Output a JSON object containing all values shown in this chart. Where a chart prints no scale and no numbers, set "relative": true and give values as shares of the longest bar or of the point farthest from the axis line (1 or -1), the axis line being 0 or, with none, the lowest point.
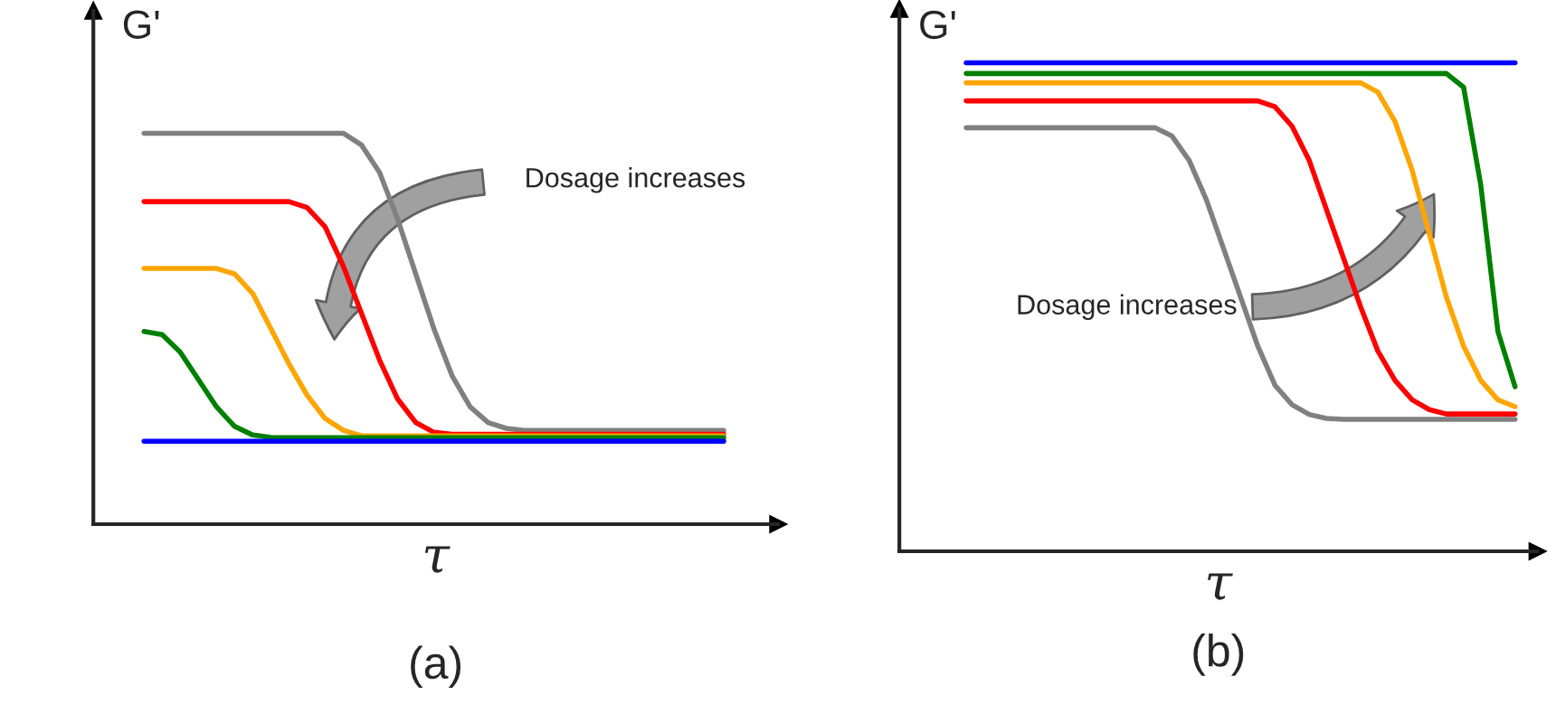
{
  "chart_data": [
    {
      "type": "line",
      "relative": true,
      "title": "(a)",
      "xlabel": "τ",
      "ylabel": "G'",
      "annotations": [
        "Dosage increases"
      ],
      "categories": [
        null,
        null,
        null,
        null,
        null,
        null,
        null,
        null,
        null,
        null,
        null,
        null,
        null,
        null,
        null,
        null,
        null,
        null,
        null,
        null,
        null,
        null,
        null,
        null,
        null,
        null,
        null,
        null,
        null,
        null,
        null,
        null,
        null
      ],
      "series": [
        {
          "color": "#808080",
          "values": [
            1.0,
            1.0,
            1.0,
            1.0,
            1.0,
            1.0,
            1.0,
            1.0,
            1.0,
            1.0,
            1.0,
            1.0,
            0.97,
            0.9,
            0.78,
            0.64,
            0.5,
            0.38,
            0.3,
            0.26,
            0.245,
            0.24,
            0.24,
            0.24,
            0.24,
            0.24,
            0.24,
            0.24,
            0.24,
            0.24,
            0.24,
            0.24,
            0.24
          ]
        },
        {
          "color": "#ff0000",
          "values": [
            0.825,
            0.825,
            0.825,
            0.825,
            0.825,
            0.825,
            0.825,
            0.825,
            0.825,
            0.81,
            0.76,
            0.66,
            0.54,
            0.42,
            0.32,
            0.26,
            0.235,
            0.23,
            0.23,
            0.23,
            0.23,
            0.23,
            0.23,
            0.23,
            0.23,
            0.23,
            0.23,
            0.23,
            0.23,
            0.23,
            0.23,
            0.23,
            0.23
          ]
        },
        {
          "color": "#ffa500",
          "values": [
            0.654,
            0.654,
            0.654,
            0.654,
            0.654,
            0.64,
            0.59,
            0.5,
            0.41,
            0.33,
            0.27,
            0.24,
            0.226,
            0.226,
            0.226,
            0.226,
            0.226,
            0.226,
            0.226,
            0.226,
            0.226,
            0.226,
            0.226,
            0.226,
            0.226,
            0.226,
            0.226,
            0.226,
            0.226,
            0.226,
            0.226,
            0.226,
            0.226
          ]
        },
        {
          "color": "#008000",
          "values": [
            0.493,
            0.485,
            0.44,
            0.37,
            0.3,
            0.25,
            0.228,
            0.222,
            0.221,
            0.221,
            0.221,
            0.221,
            0.221,
            0.221,
            0.221,
            0.221,
            0.221,
            0.221,
            0.221,
            0.221,
            0.221,
            0.221,
            0.221,
            0.221,
            0.221,
            0.221,
            0.221,
            0.221,
            0.221,
            0.221,
            0.221,
            0.221,
            0.221
          ]
        },
        {
          "color": "#0000ff",
          "values": [
            0.212,
            0.212,
            0.212,
            0.212,
            0.212,
            0.212,
            0.212,
            0.212,
            0.212,
            0.212,
            0.212,
            0.212,
            0.212,
            0.212,
            0.212,
            0.212,
            0.212,
            0.212,
            0.212,
            0.212,
            0.212,
            0.212,
            0.212,
            0.212,
            0.212,
            0.212,
            0.212,
            0.212,
            0.212,
            0.212,
            0.212,
            0.212,
            0.212
          ]
        }
      ]
    },
    {
      "type": "line",
      "relative": true,
      "title": "(b)",
      "xlabel": "τ",
      "ylabel": "G'",
      "annotations": [
        "Dosage increases"
      ],
      "categories": [
        null,
        null,
        null,
        null,
        null,
        null,
        null,
        null,
        null,
        null,
        null,
        null,
        null,
        null,
        null,
        null,
        null,
        null,
        null,
        null,
        null,
        null,
        null,
        null,
        null,
        null,
        null,
        null,
        null,
        null,
        null,
        null,
        null
      ],
      "series": [
        {
          "color": "#0000ff",
          "values": [
            1.0,
            1.0,
            1.0,
            1.0,
            1.0,
            1.0,
            1.0,
            1.0,
            1.0,
            1.0,
            1.0,
            1.0,
            1.0,
            1.0,
            1.0,
            1.0,
            1.0,
            1.0,
            1.0,
            1.0,
            1.0,
            1.0,
            1.0,
            1.0,
            1.0,
            1.0,
            1.0,
            1.0,
            1.0,
            1.0,
            1.0,
            1.0,
            1.0
          ]
        },
        {
          "color": "#008000",
          "values": [
            0.978,
            0.978,
            0.978,
            0.978,
            0.978,
            0.978,
            0.978,
            0.978,
            0.978,
            0.978,
            0.978,
            0.978,
            0.978,
            0.978,
            0.978,
            0.978,
            0.978,
            0.978,
            0.978,
            0.978,
            0.978,
            0.978,
            0.978,
            0.978,
            0.978,
            0.978,
            0.978,
            0.978,
            0.978,
            0.95,
            0.75,
            0.45,
            0.337
          ]
        },
        {
          "color": "#ffa500",
          "values": [
            0.959,
            0.959,
            0.959,
            0.959,
            0.959,
            0.959,
            0.959,
            0.959,
            0.959,
            0.959,
            0.959,
            0.959,
            0.959,
            0.959,
            0.959,
            0.959,
            0.959,
            0.959,
            0.959,
            0.959,
            0.959,
            0.959,
            0.959,
            0.959,
            0.94,
            0.88,
            0.78,
            0.65,
            0.52,
            0.42,
            0.35,
            0.31,
            0.296
          ]
        },
        {
          "color": "#ff0000",
          "values": [
            0.922,
            0.922,
            0.922,
            0.922,
            0.922,
            0.922,
            0.922,
            0.922,
            0.922,
            0.922,
            0.922,
            0.922,
            0.922,
            0.922,
            0.922,
            0.922,
            0.922,
            0.922,
            0.91,
            0.87,
            0.8,
            0.7,
            0.6,
            0.5,
            0.41,
            0.35,
            0.31,
            0.29,
            0.281,
            0.281,
            0.281,
            0.281,
            0.281
          ]
        },
        {
          "color": "#808080",
          "values": [
            0.867,
            0.867,
            0.867,
            0.867,
            0.867,
            0.867,
            0.867,
            0.867,
            0.867,
            0.867,
            0.867,
            0.867,
            0.85,
            0.8,
            0.72,
            0.62,
            0.52,
            0.42,
            0.34,
            0.3,
            0.28,
            0.272,
            0.27,
            0.27,
            0.27,
            0.27,
            0.27,
            0.27,
            0.27,
            0.27,
            0.27,
            0.27,
            0.27
          ]
        }
      ]
    }
  ]
}
